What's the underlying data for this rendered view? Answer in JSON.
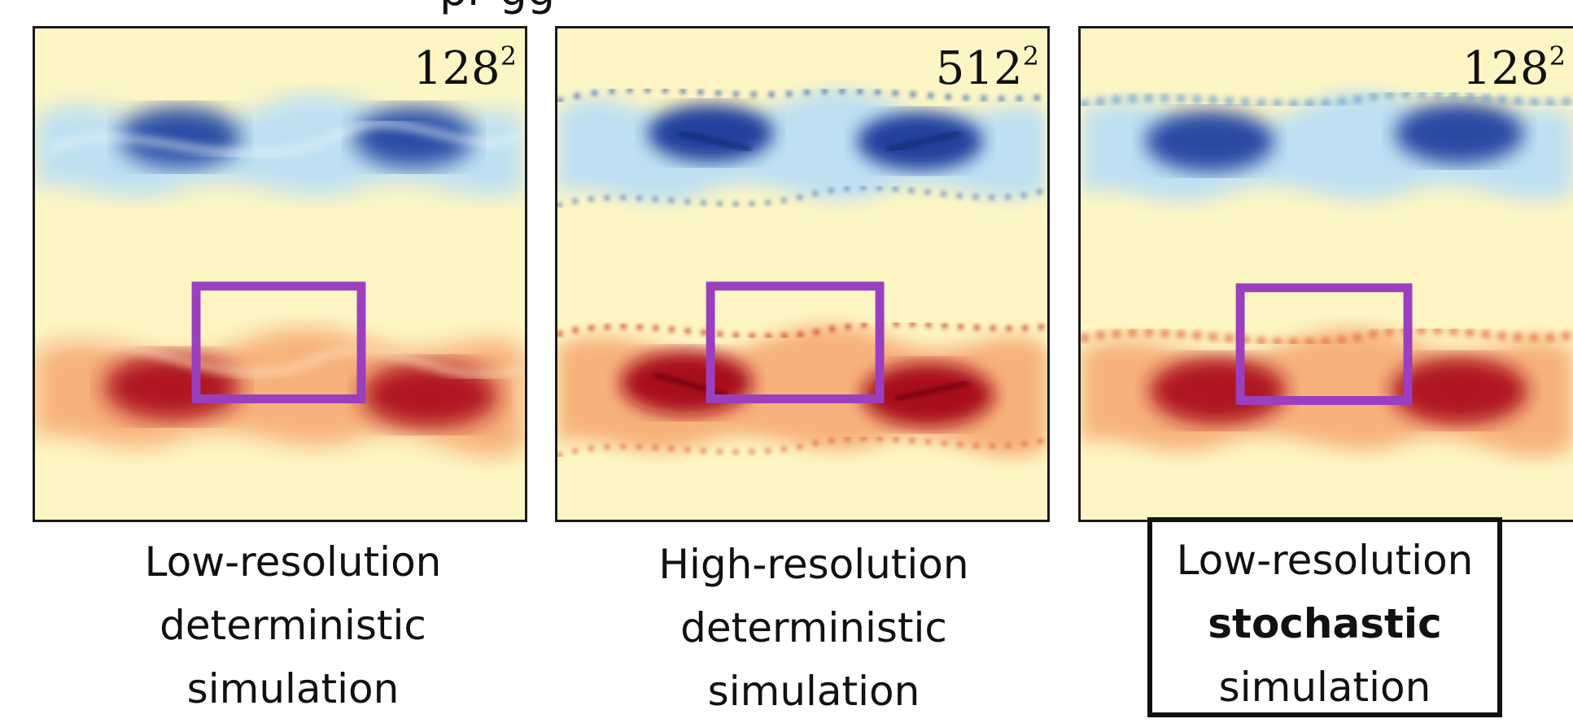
{
  "header": {
    "partial_text": "pr         gg"
  },
  "colors": {
    "background_field": "#fdf6c4",
    "blue_dark": "#1f3f9a",
    "blue_light": "#bfe0f2",
    "red_dark": "#a80c1a",
    "red_light": "#f7b27c",
    "zoom_box": "#9b3fbf"
  },
  "panels": [
    {
      "resolution_base": "128",
      "resolution_exp": "2",
      "caption": [
        "Low-resolution",
        "deterministic",
        "simulation"
      ],
      "emphasis_line": -1,
      "boxed": false
    },
    {
      "resolution_base": "512",
      "resolution_exp": "2",
      "caption": [
        "High-resolution",
        "deterministic",
        "simulation"
      ],
      "emphasis_line": -1,
      "boxed": false
    },
    {
      "resolution_base": "128",
      "resolution_exp": "2",
      "caption": [
        "Low-resolution",
        "stochastic",
        "simulation"
      ],
      "emphasis_line": 1,
      "boxed": true
    }
  ]
}
